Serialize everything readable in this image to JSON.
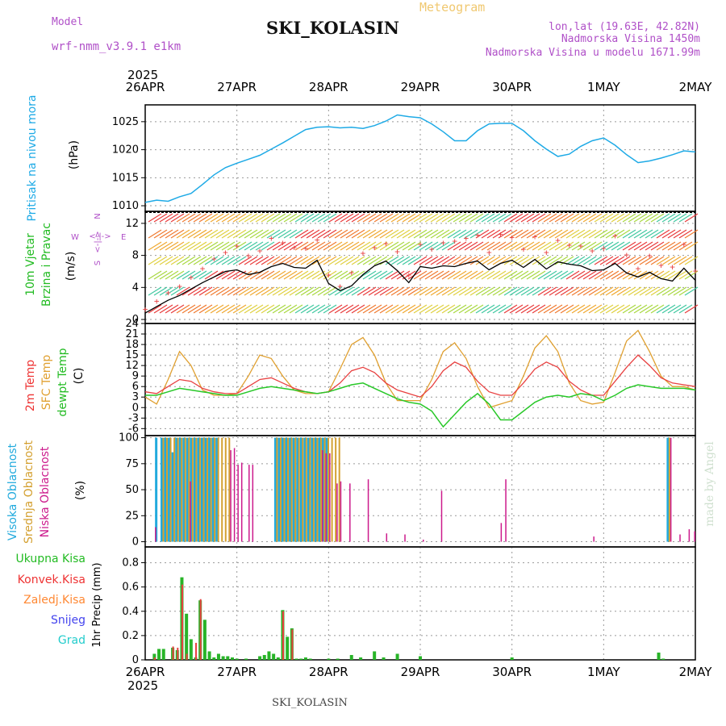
{
  "header": {
    "model_label": "Model",
    "model_name": "wrf-nmm_v3.9.1 e1km",
    "station": "SKI_KOLASIN",
    "product": "Meteogram",
    "lonlat": "lon,lat (19.63E, 42.82N)",
    "altitude": "Nadmorska Visina 1450m",
    "model_altitude": "Nadmorska Visina u modelu 1671.99m",
    "year_top": "2025",
    "year_bottom": "2025",
    "footer_station": "SKI_KOLASIN",
    "watermark": "made by Angel"
  },
  "colors": {
    "pressure": "#1eaae6",
    "wind_avg": "#000000",
    "wind_gust": "#e84040",
    "t2m": "#e84040",
    "tsfc": "#e0a030",
    "dewpoint": "#28c828",
    "cloud_high": "#22aadd",
    "cloud_mid": "#d4a030",
    "cloud_low": "#cc1a8c",
    "precip_total": "#28b428",
    "precip_conv": "#e84040",
    "label_green": "#22bb22",
    "label_red": "#ee3333",
    "label_orange": "#ff8833",
    "label_blue": "#4444ee",
    "label_cyan": "#22cccc",
    "label_purple": "#b050c8"
  },
  "chart_data": [
    {
      "type": "line",
      "panel": "pressure",
      "ylabel_name": "Pritisak na nivou mora",
      "ylabel_unit": "(hPa)",
      "x_days": [
        0,
        0.125,
        0.25,
        0.375,
        0.5,
        0.625,
        0.75,
        0.875,
        1,
        1.125,
        1.25,
        1.375,
        1.5,
        1.625,
        1.75,
        1.875,
        2,
        2.125,
        2.25,
        2.375,
        2.5,
        2.625,
        2.75,
        2.875,
        3,
        3.125,
        3.25,
        3.375,
        3.5,
        3.625,
        3.75,
        3.875,
        4,
        4.125,
        4.25,
        4.375,
        4.5,
        4.625,
        4.75,
        4.875,
        5,
        5.125,
        5.25,
        5.375,
        5.5,
        5.625,
        5.75,
        5.875,
        6
      ],
      "values": [
        1010.6,
        1011.0,
        1010.8,
        1011.6,
        1012.2,
        1013.8,
        1015.5,
        1016.8,
        1017.6,
        1018.3,
        1019.0,
        1020.1,
        1021.2,
        1022.4,
        1023.6,
        1024.0,
        1024.1,
        1023.9,
        1024.0,
        1023.8,
        1024.3,
        1025.1,
        1026.2,
        1025.9,
        1025.7,
        1024.6,
        1023.2,
        1021.6,
        1021.6,
        1023.4,
        1024.6,
        1024.7,
        1024.7,
        1023.4,
        1021.6,
        1020.1,
        1018.8,
        1019.2,
        1020.6,
        1021.6,
        1022.1,
        1020.8,
        1019.1,
        1017.7,
        1018.0,
        1018.5,
        1019.1,
        1019.8,
        1019.6
      ],
      "yticks": [
        1010,
        1015,
        1020,
        1025
      ],
      "ylim": [
        1009,
        1028
      ]
    },
    {
      "type": "line",
      "panel": "wind",
      "ylabel_name": "10m Vjetar",
      "ylabel_name2": "Brzina i Pravac",
      "ylabel_unit": "(m/s)",
      "compass": {
        "n": "N",
        "e": "E",
        "w": "W",
        "s": "S",
        "arrow_lr": "<-|->",
        "arrow_lr2": "<-|->"
      },
      "x_days": [
        0,
        0.125,
        0.25,
        0.375,
        0.5,
        0.625,
        0.75,
        0.875,
        1,
        1.125,
        1.25,
        1.375,
        1.5,
        1.625,
        1.75,
        1.875,
        2,
        2.125,
        2.25,
        2.375,
        2.5,
        2.625,
        2.75,
        2.875,
        3,
        3.125,
        3.25,
        3.375,
        3.5,
        3.625,
        3.75,
        3.875,
        4,
        4.125,
        4.25,
        4.375,
        4.5,
        4.625,
        4.75,
        4.875,
        5,
        5.125,
        5.25,
        5.375,
        5.5,
        5.625,
        5.75,
        5.875,
        6
      ],
      "series": [
        {
          "role": "avg",
          "values": [
            0.8,
            1.6,
            2.4,
            3.0,
            3.8,
            4.6,
            5.3,
            6.0,
            6.2,
            5.6,
            5.9,
            6.6,
            7.0,
            6.5,
            6.4,
            7.4,
            4.5,
            3.6,
            4.2,
            5.6,
            6.7,
            7.3,
            6.1,
            4.6,
            6.6,
            6.4,
            6.7,
            6.6,
            7.0,
            7.3,
            6.2,
            7.0,
            7.4,
            6.5,
            7.5,
            6.3,
            7.2,
            6.9,
            6.7,
            6.1,
            6.2,
            7.0,
            5.8,
            5.3,
            5.9,
            5.1,
            4.8,
            6.4,
            4.9
          ]
        },
        {
          "role": "gust",
          "values": [
            1.3,
            2.3,
            3.4,
            4.2,
            5.3,
            6.4,
            7.6,
            8.4,
            9.2,
            8.0,
            8.6,
            10.2,
            9.6,
            9.0,
            8.9,
            10.0,
            5.6,
            4.2,
            5.9,
            8.3,
            9.0,
            9.5,
            8.5,
            5.6,
            9.4,
            8.8,
            9.6,
            9.8,
            10.2,
            10.6,
            8.4,
            10.7,
            10.3,
            8.8,
            10.4,
            8.4,
            9.9,
            9.3,
            9.2,
            8.6,
            8.9,
            10.5,
            8.1,
            6.4,
            8.0,
            6.8,
            6.6,
            9.4,
            6.1
          ]
        }
      ],
      "yticks": [
        0,
        4,
        8,
        12
      ],
      "ylim": [
        -0.5,
        13.5
      ]
    },
    {
      "type": "line",
      "panel": "temperature",
      "ylabel_t2m": "2m Temp",
      "ylabel_sfc": "SFC Temp",
      "ylabel_dew": "dewpt Temp",
      "ylabel_unit": "(C)",
      "x_days": [
        0,
        0.125,
        0.25,
        0.375,
        0.5,
        0.625,
        0.75,
        0.875,
        1,
        1.125,
        1.25,
        1.375,
        1.5,
        1.625,
        1.75,
        1.875,
        2,
        2.125,
        2.25,
        2.375,
        2.5,
        2.625,
        2.75,
        2.875,
        3,
        3.125,
        3.25,
        3.375,
        3.5,
        3.625,
        3.75,
        3.875,
        4,
        4.125,
        4.25,
        4.375,
        4.5,
        4.625,
        4.75,
        4.875,
        5,
        5.125,
        5.25,
        5.375,
        5.5,
        5.625,
        5.75,
        5.875,
        6
      ],
      "series": [
        {
          "role": "t2m",
          "name": "2m Temp",
          "values": [
            4.5,
            4.0,
            6.0,
            8.0,
            7.5,
            5.5,
            4.5,
            4.0,
            4.0,
            6.0,
            8.0,
            8.5,
            7.0,
            5.5,
            4.5,
            4.0,
            4.5,
            7.0,
            10.5,
            11.5,
            10.0,
            7.0,
            5.0,
            4.0,
            3.0,
            6.0,
            10.5,
            13.0,
            11.5,
            7.5,
            4.5,
            3.5,
            3.5,
            7.0,
            11.0,
            13.0,
            11.5,
            7.5,
            5.0,
            3.5,
            3.5,
            7.5,
            11.5,
            15.0,
            12.0,
            8.5,
            7.0,
            6.5,
            6.0
          ]
        },
        {
          "role": "sfc",
          "name": "SFC Temp",
          "values": [
            3.0,
            1.0,
            8.0,
            16.0,
            12.0,
            5.0,
            3.5,
            3.5,
            4.0,
            9.0,
            15.0,
            14.0,
            9.0,
            5.0,
            4.0,
            4.0,
            4.5,
            11.0,
            18.0,
            20.0,
            15.0,
            7.0,
            2.0,
            2.0,
            2.0,
            8.0,
            16.0,
            18.5,
            14.0,
            6.0,
            0.0,
            1.0,
            2.0,
            9.0,
            17.0,
            20.5,
            16.0,
            7.0,
            2.0,
            1.0,
            1.5,
            10.0,
            19.0,
            22.0,
            16.0,
            9.0,
            6.0,
            6.0,
            5.0
          ]
        },
        {
          "role": "dew",
          "name": "dewpt Temp",
          "values": [
            3.5,
            3.5,
            4.5,
            5.5,
            5.0,
            4.5,
            4.0,
            3.5,
            3.5,
            4.5,
            5.5,
            6.0,
            5.5,
            5.0,
            4.5,
            4.0,
            4.5,
            5.5,
            6.5,
            7.0,
            5.5,
            4.0,
            2.5,
            1.5,
            1.0,
            -1.0,
            -5.5,
            -2.0,
            1.5,
            4.0,
            1.0,
            -3.5,
            -3.5,
            -1.0,
            1.5,
            3.0,
            3.5,
            3.0,
            4.0,
            3.5,
            2.0,
            3.5,
            5.5,
            6.5,
            6.0,
            5.5,
            5.5,
            5.5,
            5.0
          ]
        }
      ],
      "yticks": [
        -6,
        -3,
        0,
        3,
        6,
        9,
        12,
        15,
        18,
        21,
        24
      ],
      "ylim": [
        -8,
        24
      ]
    },
    {
      "type": "bar",
      "panel": "clouds",
      "ylabel_high": "Visoka Oblacnost",
      "ylabel_mid": "Srednja Oblacnost",
      "ylabel_low": "Niska Oblacnost",
      "ylabel_unit": "(%)",
      "x_days": [
        0.08,
        0.12,
        0.18,
        0.22,
        0.26,
        0.3,
        0.34,
        0.38,
        0.42,
        0.46,
        0.5,
        0.54,
        0.58,
        0.62,
        0.66,
        0.7,
        0.74,
        0.78,
        0.82,
        0.86,
        0.9,
        0.94,
        0.98,
        1.02,
        1.06,
        1.1,
        1.14,
        1.18,
        1.22,
        1.26,
        1.3,
        1.34,
        1.38,
        1.42,
        1.46,
        1.5,
        1.54,
        1.58,
        1.62,
        1.66,
        1.7,
        1.74,
        1.78,
        1.82,
        1.86,
        1.9,
        1.94,
        1.98,
        2.02,
        2.06,
        2.1,
        2.14,
        2.2,
        2.4,
        2.6,
        2.8,
        3.0,
        3.2,
        3.3,
        3.85,
        3.9,
        4.8,
        4.86,
        4.92,
        5.7,
        5.75,
        5.8,
        5.9,
        5.96
      ],
      "series": [
        {
          "role": "high",
          "name": "Visoka Oblacnost",
          "values": [
            0,
            100,
            100,
            100,
            100,
            86,
            100,
            100,
            100,
            100,
            100,
            100,
            100,
            100,
            100,
            100,
            100,
            100,
            0,
            0,
            0,
            0,
            0,
            0,
            0,
            0,
            0,
            0,
            0,
            0,
            0,
            0,
            0,
            100,
            100,
            100,
            100,
            100,
            100,
            100,
            100,
            100,
            100,
            100,
            100,
            100,
            100,
            100,
            0,
            0,
            0,
            0,
            0,
            0,
            0,
            0,
            0,
            0,
            0,
            0,
            0,
            0,
            0,
            0,
            100,
            0,
            0,
            0,
            0
          ]
        },
        {
          "role": "mid",
          "name": "Srednja Oblacnost",
          "values": [
            0,
            0,
            100,
            100,
            100,
            100,
            100,
            100,
            100,
            100,
            100,
            100,
            100,
            100,
            100,
            100,
            100,
            100,
            100,
            100,
            100,
            0,
            0,
            0,
            0,
            0,
            0,
            0,
            0,
            0,
            0,
            0,
            0,
            100,
            100,
            100,
            100,
            100,
            100,
            100,
            100,
            100,
            100,
            100,
            100,
            100,
            100,
            100,
            100,
            100,
            100,
            0,
            0,
            0,
            0,
            0,
            0,
            0,
            0,
            0,
            0,
            0,
            0,
            0,
            100,
            0,
            0,
            0,
            0
          ]
        },
        {
          "role": "low",
          "name": "Niska Oblacnost",
          "values": [
            14,
            0,
            0,
            0,
            0,
            0,
            0,
            0,
            0,
            58,
            0,
            0,
            0,
            0,
            0,
            0,
            0,
            0,
            0,
            0,
            88,
            90,
            74,
            76,
            0,
            74,
            74,
            0,
            0,
            0,
            0,
            0,
            0,
            0,
            0,
            0,
            0,
            0,
            0,
            0,
            0,
            0,
            0,
            0,
            0,
            88,
            85,
            85,
            0,
            56,
            58,
            0,
            56,
            60,
            8,
            7,
            2,
            49,
            0,
            18,
            60,
            0,
            5,
            0,
            100,
            0,
            7,
            12,
            10
          ]
        }
      ],
      "yticks": [
        0,
        25,
        50,
        75,
        100
      ],
      "ylim": [
        -5,
        102
      ]
    },
    {
      "type": "bar",
      "panel": "precipitation",
      "legend": [
        "Ukupna Kisa",
        "Konvek.Kisa",
        "Zaledj.Kisa",
        "Snijeg",
        "Grad"
      ],
      "ylabel": "1hr Precip (mm)",
      "x_days": [
        0.1,
        0.15,
        0.2,
        0.3,
        0.35,
        0.4,
        0.45,
        0.5,
        0.55,
        0.6,
        0.65,
        0.7,
        0.75,
        0.8,
        0.85,
        0.9,
        0.95,
        1.0,
        1.1,
        1.25,
        1.3,
        1.35,
        1.4,
        1.45,
        1.5,
        1.55,
        1.6,
        1.65,
        1.7,
        1.75,
        1.8,
        2.0,
        2.1,
        2.25,
        2.35,
        2.5,
        2.6,
        2.75,
        3.0,
        4.0,
        5.6,
        5.65
      ],
      "series": [
        {
          "role": "total",
          "name": "Ukupna Kisa",
          "values": [
            0.05,
            0.09,
            0.09,
            0.1,
            0.08,
            0.68,
            0.38,
            0.17,
            0.02,
            0.49,
            0.33,
            0.07,
            0.02,
            0.05,
            0.03,
            0.03,
            0.02,
            0.01,
            0.01,
            0.03,
            0.04,
            0.07,
            0.05,
            0.02,
            0.41,
            0.19,
            0.26,
            0.01,
            0.01,
            0.02,
            0.01,
            0.01,
            0.01,
            0.04,
            0.02,
            0.07,
            0.02,
            0.05,
            0.03,
            0.02,
            0.06,
            0.01
          ]
        },
        {
          "role": "convective",
          "name": "Konvek.Kisa",
          "values": [
            0.02,
            0.0,
            0.0,
            0.11,
            0.1,
            0.62,
            0.05,
            0.0,
            0.14,
            0.5,
            0.0,
            0.0,
            0.0,
            0.0,
            0.0,
            0.0,
            0.0,
            0.0,
            0.0,
            0.0,
            0.0,
            0.0,
            0.0,
            0.0,
            0.4,
            0.0,
            0.25,
            0.0,
            0.0,
            0.0,
            0.0,
            0.0,
            0.0,
            0.0,
            0.0,
            0.0,
            0.0,
            0.0,
            0.0,
            0.0,
            0.0,
            0.0
          ]
        }
      ],
      "yticks": [
        0,
        0.2,
        0.4,
        0.6,
        0.8
      ],
      "ylim": [
        0,
        0.93
      ]
    }
  ],
  "x_axis": {
    "top_labels": [
      "26APR",
      "27APR",
      "28APR",
      "29APR",
      "30APR",
      "1MAY",
      "2MAY"
    ],
    "bottom_labels": [
      "26APR",
      "27APR",
      "28APR",
      "29APR",
      "30APR",
      "1MAY",
      "2MAY"
    ]
  }
}
